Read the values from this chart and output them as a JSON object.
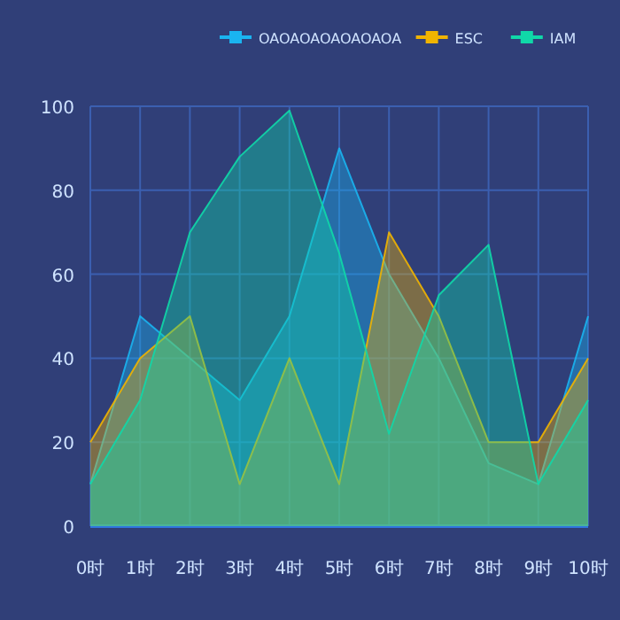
{
  "chart_data": {
    "type": "area",
    "categories": [
      "0时",
      "1时",
      "2时",
      "3时",
      "4时",
      "5时",
      "6时",
      "7时",
      "8时",
      "9时",
      "10时"
    ],
    "series": [
      {
        "name": "OAOAOAOAOAOAOA",
        "color": "#1ab4f0",
        "values": [
          10,
          50,
          40,
          30,
          50,
          90,
          60,
          40,
          15,
          10,
          50
        ]
      },
      {
        "name": "ESC",
        "color": "#f0b400",
        "values": [
          20,
          40,
          50,
          10,
          40,
          10,
          70,
          50,
          20,
          20,
          40
        ]
      },
      {
        "name": "IAM",
        "color": "#10d8a8",
        "values": [
          10,
          30,
          70,
          88,
          99,
          65,
          22,
          55,
          67,
          10,
          30
        ]
      }
    ],
    "ylim": [
      0,
      100
    ],
    "yticks": [
      0,
      20,
      40,
      60,
      80,
      100
    ],
    "grid": true,
    "legend": "top right"
  }
}
